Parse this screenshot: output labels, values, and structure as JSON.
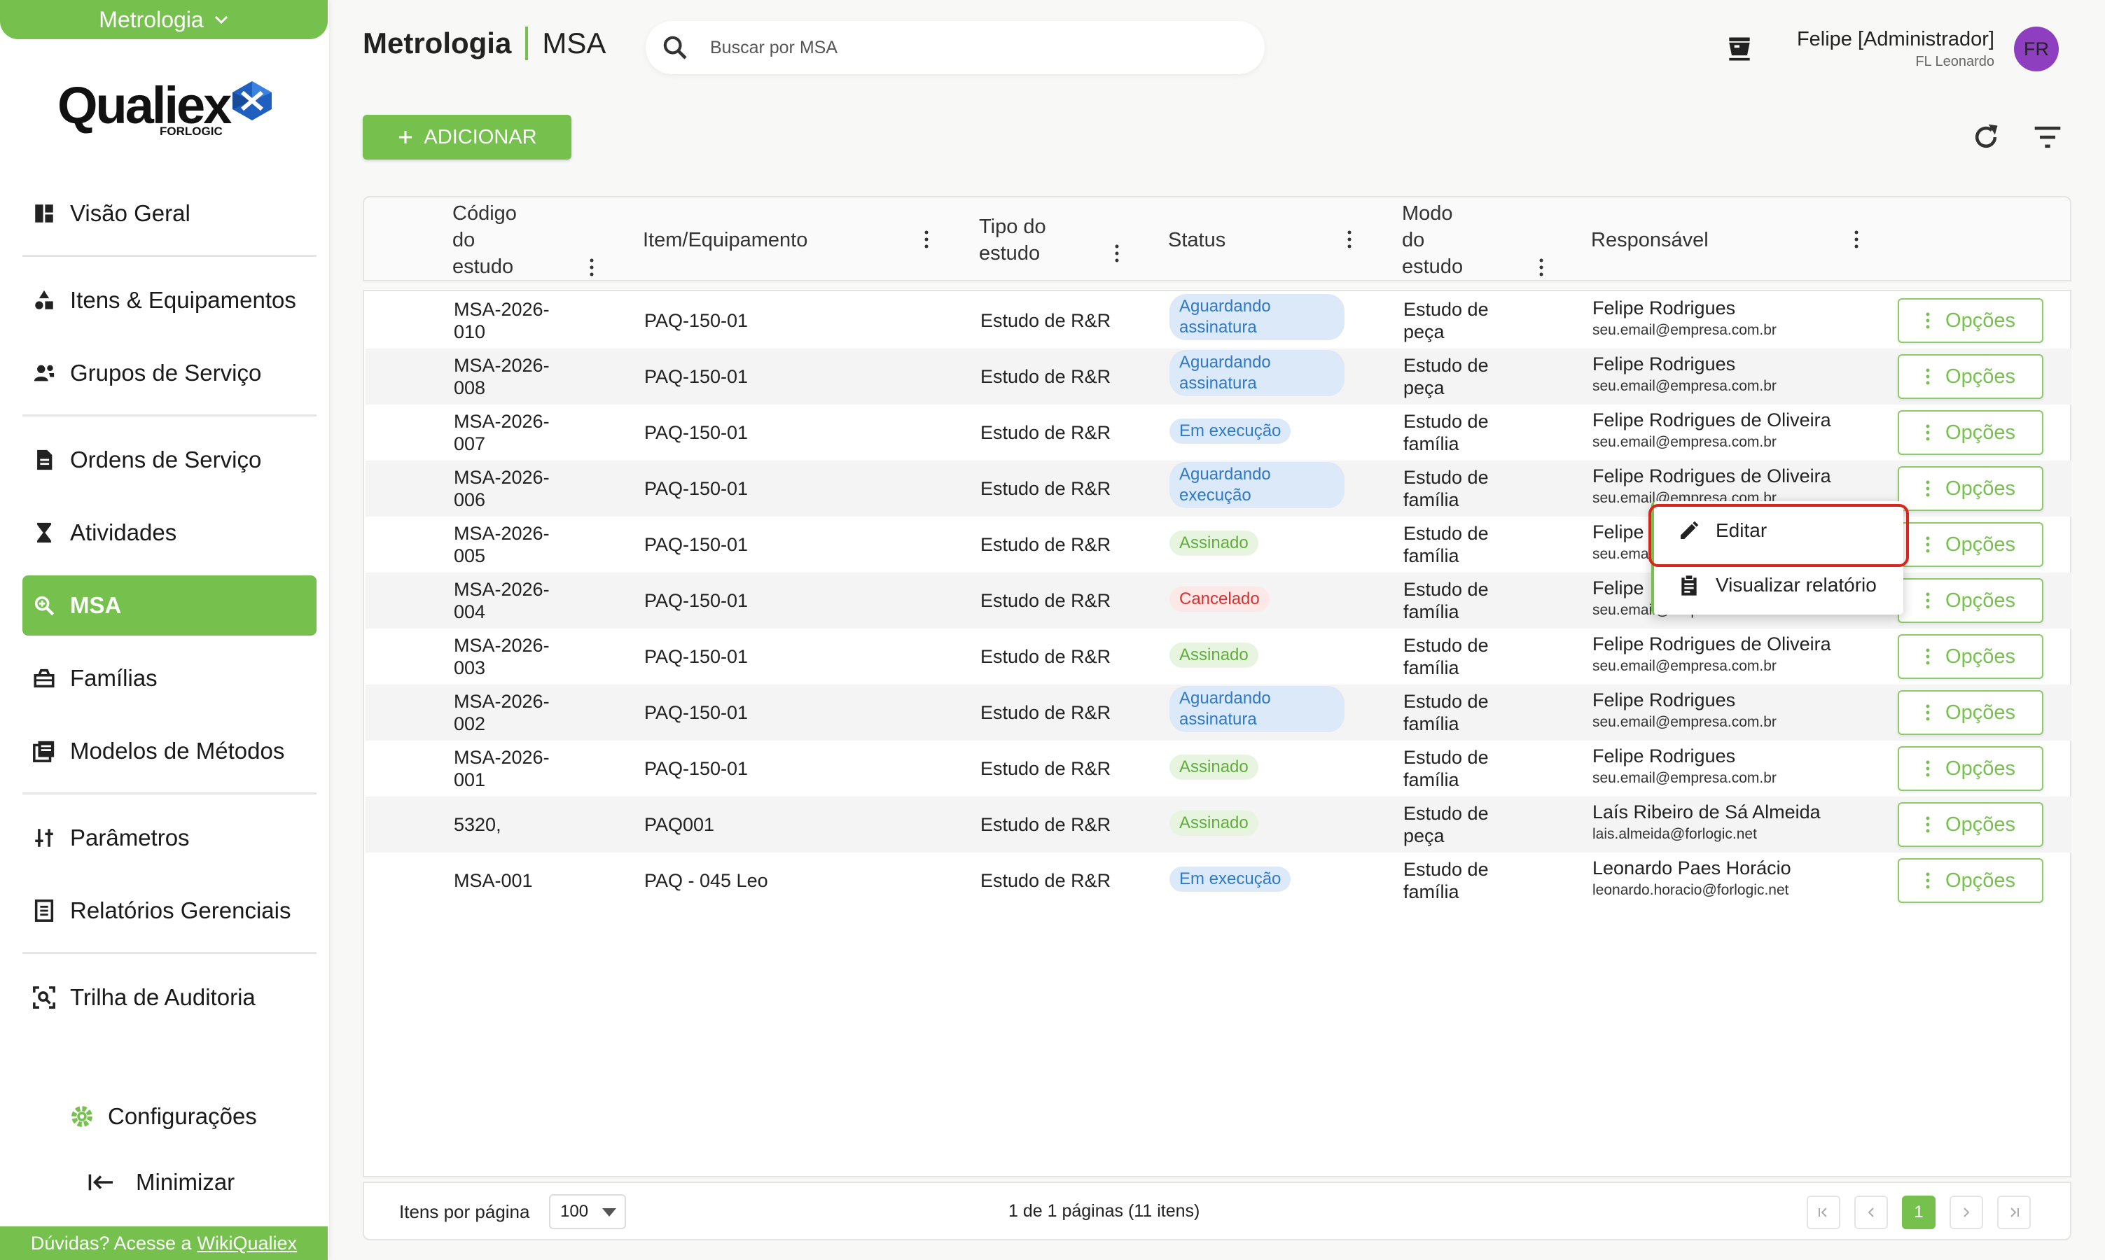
{
  "app": {
    "module_selector": "Metrologia",
    "logo_word": "Qualiex",
    "logo_sub": "FORLOGIC",
    "help_text": "Dúvidas? Acesse a",
    "help_link": "WikiQualiex"
  },
  "sidebar": {
    "items": [
      {
        "label": "Visão Geral",
        "icon": "dashboard-icon"
      },
      {
        "label": "Itens & Equipamentos",
        "icon": "shapes-icon"
      },
      {
        "label": "Grupos de Serviço",
        "icon": "group-icon"
      },
      {
        "label": "Ordens de Serviço",
        "icon": "document-icon"
      },
      {
        "label": "Atividades",
        "icon": "hourglass-icon"
      },
      {
        "label": "MSA",
        "icon": "zoom-icon",
        "active": true
      },
      {
        "label": "Famílias",
        "icon": "basket-icon"
      },
      {
        "label": "Modelos de Métodos",
        "icon": "library-icon"
      },
      {
        "label": "Parâmetros",
        "icon": "sliders-icon"
      },
      {
        "label": "Relatórios Gerenciais",
        "icon": "report-icon"
      },
      {
        "label": "Trilha de Auditoria",
        "icon": "audit-icon"
      }
    ],
    "config_label": "Configurações",
    "minimize_label": "Minimizar"
  },
  "header": {
    "breadcrumb_module": "Metrologia",
    "breadcrumb_page": "MSA",
    "search_placeholder": "Buscar por MSA",
    "user_name": "Felipe [Administrador]",
    "user_org": "FL Leonardo",
    "avatar_initials": "FR"
  },
  "toolbar": {
    "add_label": "ADICIONAR"
  },
  "table": {
    "columns": [
      "Código do estudo",
      "Item/Equipamento",
      "Tipo do estudo",
      "Status",
      "Modo do estudo",
      "Responsável"
    ],
    "column_lines": [
      [
        "Código",
        "do",
        "estudo"
      ],
      [
        "Item/Equipamento"
      ],
      [
        "Tipo do",
        "estudo"
      ],
      [
        "Status"
      ],
      [
        "Modo",
        "do",
        "estudo"
      ],
      [
        "Responsável"
      ]
    ],
    "options_label": "Opções",
    "rows": [
      {
        "code": [
          "MSA-2026-",
          "010"
        ],
        "item": "PAQ-150-01",
        "tipo": "Estudo de R&R",
        "status": [
          "Aguardando",
          "assinatura"
        ],
        "status_color": "blue",
        "modo": [
          "Estudo de",
          "peça"
        ],
        "resp_name": "Felipe Rodrigues",
        "resp_email": "seu.email@empresa.com.br"
      },
      {
        "code": [
          "MSA-2026-",
          "008"
        ],
        "item": "PAQ-150-01",
        "tipo": "Estudo de R&R",
        "status": [
          "Aguardando",
          "assinatura"
        ],
        "status_color": "blue",
        "modo": [
          "Estudo de",
          "peça"
        ],
        "resp_name": "Felipe Rodrigues",
        "resp_email": "seu.email@empresa.com.br"
      },
      {
        "code": [
          "MSA-2026-",
          "007"
        ],
        "item": "PAQ-150-01",
        "tipo": "Estudo de R&R",
        "status": [
          "Em execução"
        ],
        "status_color": "blue",
        "modo": [
          "Estudo de",
          "família"
        ],
        "resp_name": "Felipe Rodrigues de Oliveira",
        "resp_email": "seu.email@empresa.com.br"
      },
      {
        "code": [
          "MSA-2026-",
          "006"
        ],
        "item": "PAQ-150-01",
        "tipo": "Estudo de R&R",
        "status": [
          "Aguardando",
          "execução"
        ],
        "status_color": "blue",
        "modo": [
          "Estudo de",
          "família"
        ],
        "resp_name": "Felipe Rodrigues de Oliveira",
        "resp_email": "seu.email@empresa.com.br"
      },
      {
        "code": [
          "MSA-2026-",
          "005"
        ],
        "item": "PAQ-150-01",
        "tipo": "Estudo de R&R",
        "status": [
          "Assinado"
        ],
        "status_color": "green",
        "modo": [
          "Estudo de",
          "família"
        ],
        "resp_name": "Felipe",
        "resp_email": "seu.ema"
      },
      {
        "code": [
          "MSA-2026-",
          "004"
        ],
        "item": "PAQ-150-01",
        "tipo": "Estudo de R&R",
        "status": [
          "Cancelado"
        ],
        "status_color": "red",
        "modo": [
          "Estudo de",
          "família"
        ],
        "resp_name": "Felipe",
        "resp_email": "seu.email@empresa.com.br"
      },
      {
        "code": [
          "MSA-2026-",
          "003"
        ],
        "item": "PAQ-150-01",
        "tipo": "Estudo de R&R",
        "status": [
          "Assinado"
        ],
        "status_color": "green",
        "modo": [
          "Estudo de",
          "família"
        ],
        "resp_name": "Felipe Rodrigues de Oliveira",
        "resp_email": "seu.email@empresa.com.br"
      },
      {
        "code": [
          "MSA-2026-",
          "002"
        ],
        "item": "PAQ-150-01",
        "tipo": "Estudo de R&R",
        "status": [
          "Aguardando",
          "assinatura"
        ],
        "status_color": "blue",
        "modo": [
          "Estudo de",
          "família"
        ],
        "resp_name": "Felipe Rodrigues",
        "resp_email": "seu.email@empresa.com.br"
      },
      {
        "code": [
          "MSA-2026-",
          "001"
        ],
        "item": "PAQ-150-01",
        "tipo": "Estudo de R&R",
        "status": [
          "Assinado"
        ],
        "status_color": "green",
        "modo": [
          "Estudo de",
          "família"
        ],
        "resp_name": "Felipe Rodrigues",
        "resp_email": "seu.email@empresa.com.br"
      },
      {
        "code": [
          "5320,"
        ],
        "item": "PAQ001",
        "tipo": "Estudo de R&R",
        "status": [
          "Assinado"
        ],
        "status_color": "green",
        "modo": [
          "Estudo de",
          "peça"
        ],
        "resp_name": "Laís Ribeiro de Sá Almeida",
        "resp_email": "lais.almeida@forlogic.net"
      },
      {
        "code": [
          "MSA-001"
        ],
        "item": "PAQ - 045 Leo",
        "tipo": "Estudo de R&R",
        "status": [
          "Em execução"
        ],
        "status_color": "blue",
        "modo": [
          "Estudo de",
          "família"
        ],
        "resp_name": "Leonardo Paes Horácio",
        "resp_email": "leonardo.horacio@forlogic.net"
      }
    ]
  },
  "context_menu": {
    "items": [
      {
        "label": "Editar",
        "icon": "pencil-icon"
      },
      {
        "label": "Visualizar relatório",
        "icon": "clipboard-icon"
      }
    ]
  },
  "pagination": {
    "items_per_page_label": "Itens por página",
    "items_per_page_value": "100",
    "info": "1 de 1 páginas (11 itens)",
    "current_page": "1"
  },
  "colors": {
    "accent": "#76c04e",
    "highlight": "#d9251c",
    "badge_blue": "#2e79c8",
    "badge_green": "#5fae3a",
    "badge_red": "#d93030"
  }
}
